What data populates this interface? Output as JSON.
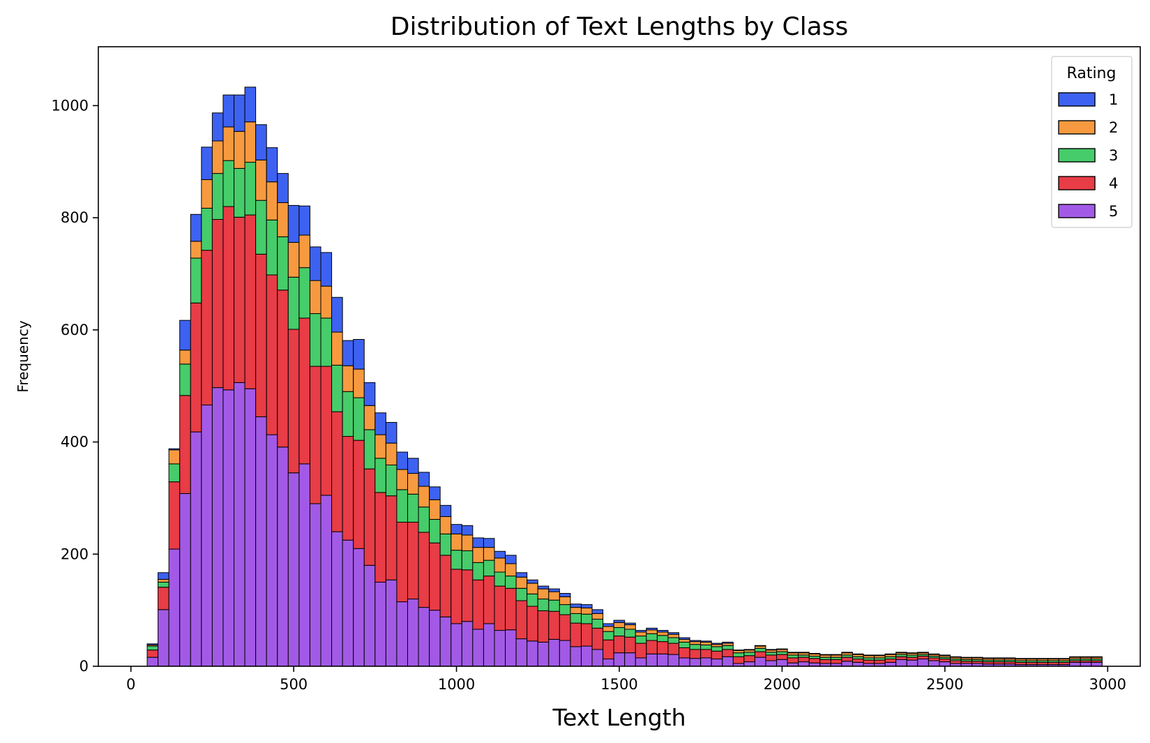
{
  "chart_data": {
    "type": "bar",
    "stacked": true,
    "title": "Distribution of Text Lengths by Class",
    "xlabel": "Text Length",
    "ylabel": "Frequency",
    "xlim": [
      -100,
      3100
    ],
    "ylim": [
      0,
      1105
    ],
    "x_ticks": [
      0,
      500,
      1000,
      1500,
      2000,
      2500,
      3000
    ],
    "y_ticks": [
      0,
      200,
      400,
      600,
      800,
      1000
    ],
    "grid": false,
    "legend": {
      "title": "Rating",
      "placement": "top-right"
    },
    "bin_width": 33.33,
    "bin_start": 50,
    "stack_order": [
      "5",
      "4",
      "3",
      "2",
      "1"
    ],
    "colors": {
      "1": "#3d62f2",
      "2": "#f79a3f",
      "3": "#46cc6a",
      "4": "#e83c46",
      "5": "#a25ae6"
    },
    "series": [
      {
        "name": "1",
        "values": [
          2,
          12,
          2,
          53,
          48,
          58,
          50,
          57,
          65,
          62,
          63,
          61,
          52,
          66,
          52,
          60,
          60,
          62,
          45,
          53,
          41,
          39,
          37,
          31,
          27,
          25,
          23,
          20,
          17,
          17,
          17,
          16,
          12,
          15,
          8,
          6,
          5,
          5,
          6,
          6,
          6,
          7,
          5,
          4,
          3,
          3,
          3,
          3,
          3,
          3,
          2,
          2,
          2,
          2,
          1,
          1,
          1,
          1,
          1,
          1,
          1,
          1,
          1,
          1,
          1,
          1,
          1,
          1,
          1,
          1,
          1,
          1,
          1,
          1,
          1,
          1,
          1,
          1,
          1,
          1,
          1,
          1,
          1,
          1,
          1,
          1,
          1,
          1
        ]
      },
      {
        "name": "2",
        "values": [
          2,
          5,
          25,
          25,
          30,
          51,
          58,
          60,
          66,
          72,
          72,
          68,
          61,
          62,
          58,
          59,
          57,
          59,
          46,
          51,
          43,
          42,
          39,
          36,
          37,
          37,
          35,
          31,
          29,
          28,
          27,
          23,
          25,
          22,
          20,
          19,
          18,
          15,
          14,
          11,
          11,
          10,
          9,
          9,
          8,
          7,
          7,
          6,
          6,
          5,
          5,
          5,
          4,
          4,
          4,
          4,
          4,
          4,
          4,
          4,
          4,
          4,
          4,
          4,
          4,
          4,
          4,
          4,
          4,
          3,
          3,
          3,
          3,
          3,
          3,
          3,
          3,
          3,
          3,
          3,
          3,
          3,
          3,
          3,
          3,
          3,
          3,
          3
        ]
      },
      {
        "name": "3",
        "values": [
          7,
          9,
          32,
          56,
          80,
          75,
          82,
          82,
          87,
          94,
          96,
          98,
          95,
          93,
          90,
          94,
          86,
          83,
          80,
          76,
          70,
          61,
          55,
          58,
          50,
          45,
          42,
          38,
          34,
          34,
          31,
          28,
          25,
          22,
          22,
          22,
          21,
          20,
          18,
          17,
          17,
          16,
          15,
          15,
          14,
          13,
          12,
          11,
          10,
          10,
          9,
          8,
          8,
          7,
          7,
          6,
          6,
          5,
          5,
          5,
          4,
          4,
          4,
          4,
          4,
          4,
          4,
          4,
          4,
          4,
          4,
          3,
          3,
          3,
          3,
          3,
          3,
          3,
          3,
          3,
          3,
          3,
          3,
          3,
          3,
          3,
          3,
          3
        ]
      },
      {
        "name": "4",
        "values": [
          13,
          40,
          120,
          175,
          230,
          276,
          300,
          327,
          295,
          310,
          290,
          285,
          280,
          256,
          260,
          245,
          230,
          214,
          185,
          193,
          172,
          160,
          150,
          142,
          137,
          134,
          120,
          110,
          97,
          92,
          88,
          85,
          79,
          74,
          68,
          62,
          56,
          50,
          46,
          42,
          40,
          38,
          34,
          30,
          28,
          26,
          24,
          22,
          20,
          18,
          16,
          15,
          14,
          13,
          12,
          11,
          10,
          10,
          9,
          9,
          8,
          8,
          7,
          7,
          7,
          6,
          6,
          6,
          6,
          5,
          5,
          5,
          5,
          5,
          5,
          4,
          4,
          4,
          4,
          4,
          4,
          4,
          4,
          4,
          4,
          3,
          3,
          3
        ]
      },
      {
        "name": "5",
        "values": [
          16,
          101,
          209,
          308,
          418,
          466,
          497,
          493,
          506,
          495,
          445,
          413,
          391,
          345,
          361,
          290,
          305,
          240,
          225,
          210,
          180,
          150,
          154,
          115,
          120,
          105,
          100,
          88,
          76,
          80,
          66,
          76,
          64,
          65,
          49,
          45,
          43,
          48,
          46,
          35,
          36,
          30,
          13,
          24,
          24,
          15,
          22,
          22,
          21,
          15,
          14,
          15,
          13,
          17,
          5,
          8,
          16,
          10,
          12,
          6,
          8,
          6,
          5,
          5,
          9,
          7,
          5,
          5,
          7,
          12,
          11,
          13,
          10,
          8,
          5,
          5,
          5,
          4,
          4,
          4,
          3,
          3,
          3,
          3,
          3,
          7,
          7,
          7
        ]
      }
    ]
  }
}
